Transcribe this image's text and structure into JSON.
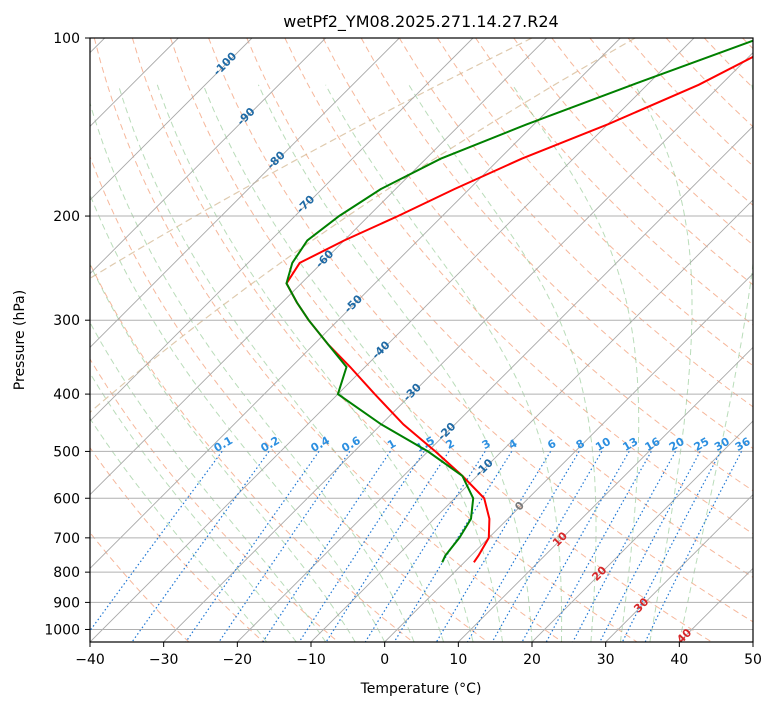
{
  "chart_data": {
    "type": "line",
    "title": "wetPf2_YM08.2025.271.14.27.R24",
    "xlabel": "Temperature (°C)",
    "ylabel": "Pressure (hPa)",
    "xlim": [
      -40,
      50
    ],
    "ylim": [
      1050,
      100
    ],
    "log_y": true,
    "skew": true,
    "grid": true,
    "x_ticks": [
      -40,
      -30,
      -20,
      -10,
      0,
      10,
      20,
      30,
      40,
      50
    ],
    "y_ticks": [
      100,
      200,
      300,
      400,
      500,
      600,
      700,
      800,
      900,
      1000
    ],
    "mixing_ratio_labels": [
      "0.1",
      "0.2",
      "0.4",
      "0.6",
      "1",
      "1.5",
      "2",
      "3",
      "4",
      "6",
      "8",
      "10",
      "13",
      "16",
      "20",
      "25",
      "30",
      "36"
    ],
    "isotherm_labels": [
      "-100",
      "-90",
      "-80",
      "-70",
      "-60",
      "-50",
      "-40",
      "-30",
      "-20",
      "-10",
      "0",
      "10",
      "20",
      "30",
      "40"
    ],
    "series": [
      {
        "color": "#ff0000",
        "pressure": [
          100,
          120,
          140,
          160,
          180,
          200,
          220,
          240,
          260,
          280,
          300,
          330,
          360,
          400,
          450,
          500,
          550,
          600,
          650,
          700,
          750,
          770
        ],
        "values": [
          -27,
          -33,
          -40,
          -47,
          -52,
          -56,
          -60,
          -63,
          -62,
          -58,
          -54,
          -48,
          -42,
          -35,
          -27,
          -19,
          -12,
          -6,
          -2.5,
          0,
          1,
          1.3
        ]
      },
      {
        "color": "#008000",
        "pressure": [
          100,
          120,
          140,
          160,
          180,
          200,
          220,
          240,
          260,
          280,
          300,
          330,
          360,
          400,
          450,
          500,
          550,
          600,
          650,
          700,
          750,
          770
        ],
        "values": [
          -31,
          -42,
          -51,
          -58,
          -62,
          -64,
          -65,
          -64,
          -62,
          -58,
          -54,
          -48,
          -42.5,
          -40,
          -30,
          -20,
          -12,
          -7.5,
          -5,
          -4,
          -3.5,
          -3
        ]
      }
    ]
  }
}
